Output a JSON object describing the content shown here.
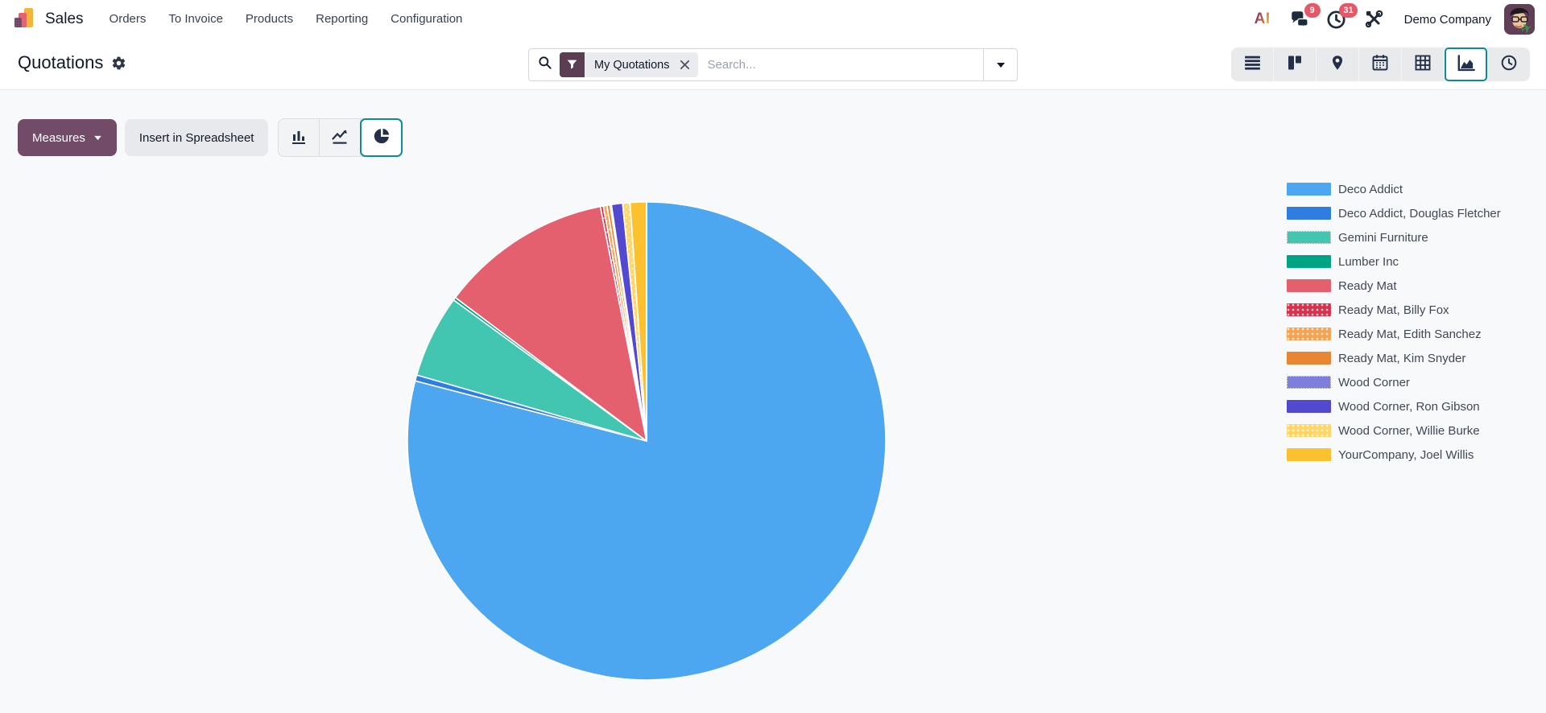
{
  "navbar": {
    "app_name": "Sales",
    "menu_items": [
      "Orders",
      "To Invoice",
      "Products",
      "Reporting",
      "Configuration"
    ],
    "right": {
      "ai_label": "AI",
      "messages_badge": "9",
      "activities_badge": "31",
      "company_name": "Demo Company"
    }
  },
  "control_panel": {
    "title": "Quotations",
    "search": {
      "facet_label": "My Quotations",
      "placeholder": "Search..."
    },
    "view_switcher": [
      "list",
      "kanban",
      "map",
      "calendar",
      "pivot",
      "graph",
      "activity"
    ],
    "active_view": "graph"
  },
  "toolbar": {
    "measures_label": "Measures",
    "insert_label": "Insert in Spreadsheet",
    "chart_types": [
      "bar",
      "line",
      "pie"
    ],
    "active_chart_type": "pie"
  },
  "colors": {
    "primary": "#714B67",
    "accent_teal": "#0e8c96",
    "badge_red": "#e4586a"
  },
  "chart_data": {
    "type": "pie",
    "title": "",
    "legend_position": "right",
    "start_angle_deg": 0,
    "direction": "clockwise-from-top",
    "categories": [
      "Deco Addict",
      "Deco Addict, Douglas Fletcher",
      "Gemini Furniture",
      "Lumber Inc",
      "Ready Mat",
      "Ready Mat, Billy Fox",
      "Ready Mat, Edith Sanchez",
      "Ready Mat, Kim Snyder",
      "Wood Corner",
      "Wood Corner, Ron Gibson",
      "Wood Corner, Willie Burke",
      "YourCompany, Joel Willis"
    ],
    "values": [
      79.05,
      0.4,
      5.6,
      0.2,
      11.65,
      0.2,
      0.25,
      0.2,
      0.1,
      0.75,
      0.5,
      1.1
    ],
    "unit": "percent-of-total (estimated from slice angles, no numeric labels shown)",
    "colors": [
      "#4DA7F0",
      "#2E7DE0",
      "#43C6B1",
      "#00A383",
      "#E5606E",
      "#D8314E",
      "#F5A350",
      "#E98634",
      "#7E7FDC",
      "#5349CE",
      "#FFD666",
      "#FBC12E"
    ],
    "patterns": [
      "solid",
      "solid",
      "dotted-border",
      "solid",
      "solid",
      "dots",
      "dots",
      "solid",
      "dotted-border",
      "solid",
      "dots",
      "solid"
    ]
  }
}
